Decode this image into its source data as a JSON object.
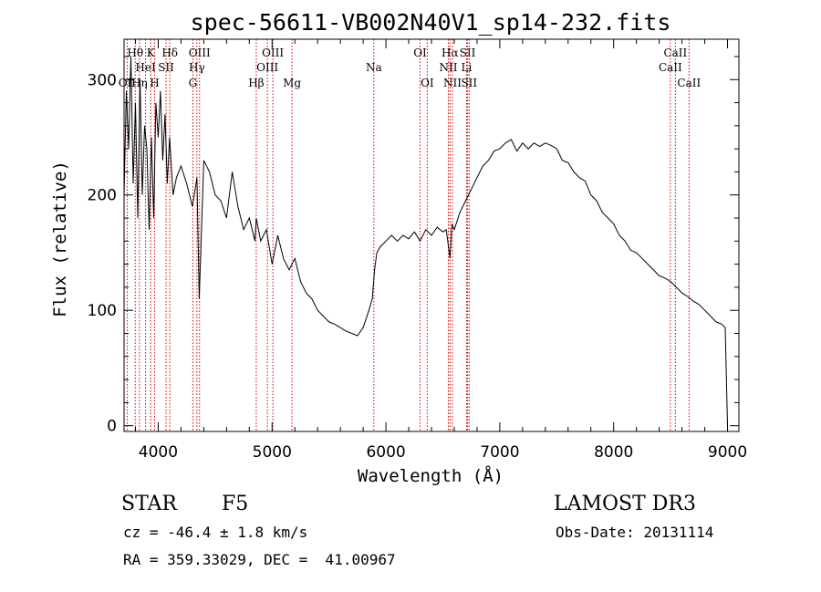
{
  "chart_data": {
    "type": "line",
    "title": "spec-56611-VB002N40V1_sp14-232.fits",
    "xlabel": "Wavelength (Å)",
    "ylabel": "Flux (relative)",
    "xlim": [
      3700,
      9100
    ],
    "ylim": [
      -5,
      335
    ],
    "xticks": [
      4000,
      5000,
      6000,
      7000,
      8000,
      9000
    ],
    "yticks": [
      0,
      100,
      200,
      300
    ],
    "series": [
      {
        "name": "flux",
        "x": [
          3700,
          3720,
          3740,
          3760,
          3780,
          3800,
          3820,
          3840,
          3860,
          3880,
          3900,
          3920,
          3940,
          3960,
          3980,
          4000,
          4020,
          4040,
          4060,
          4080,
          4100,
          4130,
          4160,
          4200,
          4250,
          4300,
          4340,
          4360,
          4400,
          4450,
          4500,
          4550,
          4600,
          4650,
          4700,
          4750,
          4800,
          4850,
          4861,
          4900,
          4950,
          5000,
          5050,
          5100,
          5150,
          5200,
          5250,
          5300,
          5350,
          5400,
          5450,
          5500,
          5550,
          5600,
          5650,
          5700,
          5750,
          5800,
          5850,
          5880,
          5900,
          5920,
          5950,
          6000,
          6050,
          6100,
          6150,
          6200,
          6250,
          6300,
          6350,
          6400,
          6450,
          6500,
          6530,
          6563,
          6580,
          6600,
          6650,
          6700,
          6750,
          6800,
          6850,
          6900,
          6950,
          7000,
          7050,
          7100,
          7150,
          7200,
          7250,
          7300,
          7350,
          7400,
          7450,
          7500,
          7550,
          7600,
          7650,
          7700,
          7750,
          7800,
          7850,
          7900,
          7950,
          8000,
          8050,
          8100,
          8150,
          8200,
          8250,
          8300,
          8350,
          8400,
          8450,
          8500,
          8550,
          8600,
          8650,
          8700,
          8750,
          8800,
          8850,
          8900,
          8950,
          8980,
          9000
        ],
        "y": [
          200,
          290,
          240,
          320,
          210,
          280,
          180,
          300,
          200,
          260,
          240,
          170,
          250,
          180,
          280,
          250,
          290,
          230,
          270,
          210,
          250,
          200,
          215,
          225,
          210,
          190,
          215,
          110,
          230,
          220,
          200,
          195,
          180,
          220,
          190,
          170,
          180,
          160,
          180,
          160,
          170,
          140,
          165,
          145,
          135,
          145,
          125,
          115,
          110,
          100,
          95,
          90,
          88,
          85,
          82,
          80,
          78,
          85,
          100,
          110,
          135,
          150,
          155,
          160,
          165,
          160,
          165,
          162,
          168,
          160,
          170,
          165,
          172,
          168,
          170,
          145,
          175,
          170,
          185,
          195,
          205,
          215,
          225,
          230,
          238,
          240,
          245,
          248,
          238,
          245,
          240,
          245,
          242,
          245,
          243,
          240,
          230,
          228,
          220,
          215,
          212,
          200,
          195,
          185,
          180,
          175,
          165,
          160,
          152,
          150,
          145,
          140,
          135,
          130,
          128,
          125,
          120,
          115,
          112,
          108,
          105,
          100,
          95,
          90,
          88,
          85,
          0
        ]
      }
    ],
    "lines": [
      {
        "label": "OII",
        "wave": 3727,
        "row": 3
      },
      {
        "label": "Hθ",
        "wave": 3798,
        "row": 1
      },
      {
        "label": "Hη",
        "wave": 3835,
        "row": 3
      },
      {
        "label": "HeI",
        "wave": 3889,
        "row": 2
      },
      {
        "label": "K",
        "wave": 3934,
        "row": 1
      },
      {
        "label": "H",
        "wave": 3968,
        "row": 3
      },
      {
        "label": "SII",
        "wave": 4069,
        "row": 2
      },
      {
        "label": "Hδ",
        "wave": 4102,
        "row": 1
      },
      {
        "label": "G",
        "wave": 4304,
        "row": 3
      },
      {
        "label": "Hγ",
        "wave": 4340,
        "row": 2
      },
      {
        "label": "OIII",
        "wave": 4363,
        "row": 1
      },
      {
        "label": "Hβ",
        "wave": 4861,
        "row": 3
      },
      {
        "label": "OIII",
        "wave": 4959,
        "row": 2
      },
      {
        "label": "OIII",
        "wave": 5007,
        "row": 1
      },
      {
        "label": "Mg",
        "wave": 5175,
        "row": 3
      },
      {
        "label": "Na",
        "wave": 5894,
        "row": 2
      },
      {
        "label": "OI",
        "wave": 6300,
        "row": 1
      },
      {
        "label": "OI",
        "wave": 6363,
        "row": 3
      },
      {
        "label": "NII",
        "wave": 6548,
        "row": 2
      },
      {
        "label": "Hα",
        "wave": 6563,
        "row": 1
      },
      {
        "label": "NII",
        "wave": 6584,
        "row": 3
      },
      {
        "label": "Li",
        "wave": 6708,
        "row": 2
      },
      {
        "label": "SII",
        "wave": 6717,
        "row": 1
      },
      {
        "label": "SII",
        "wave": 6731,
        "row": 3
      },
      {
        "label": "CaII",
        "wave": 8498,
        "row": 2
      },
      {
        "label": "CaII",
        "wave": 8542,
        "row": 1
      },
      {
        "label": "CaII",
        "wave": 8662,
        "row": 3
      }
    ]
  },
  "info": {
    "obj_class": "STAR",
    "subclass": "F5",
    "survey": "LAMOST DR3",
    "cz": "cz = -46.4 ± 1.8 km/s",
    "obs_date": "Obs-Date: 20131114",
    "coords": "RA = 359.33029, DEC =  41.00967"
  }
}
